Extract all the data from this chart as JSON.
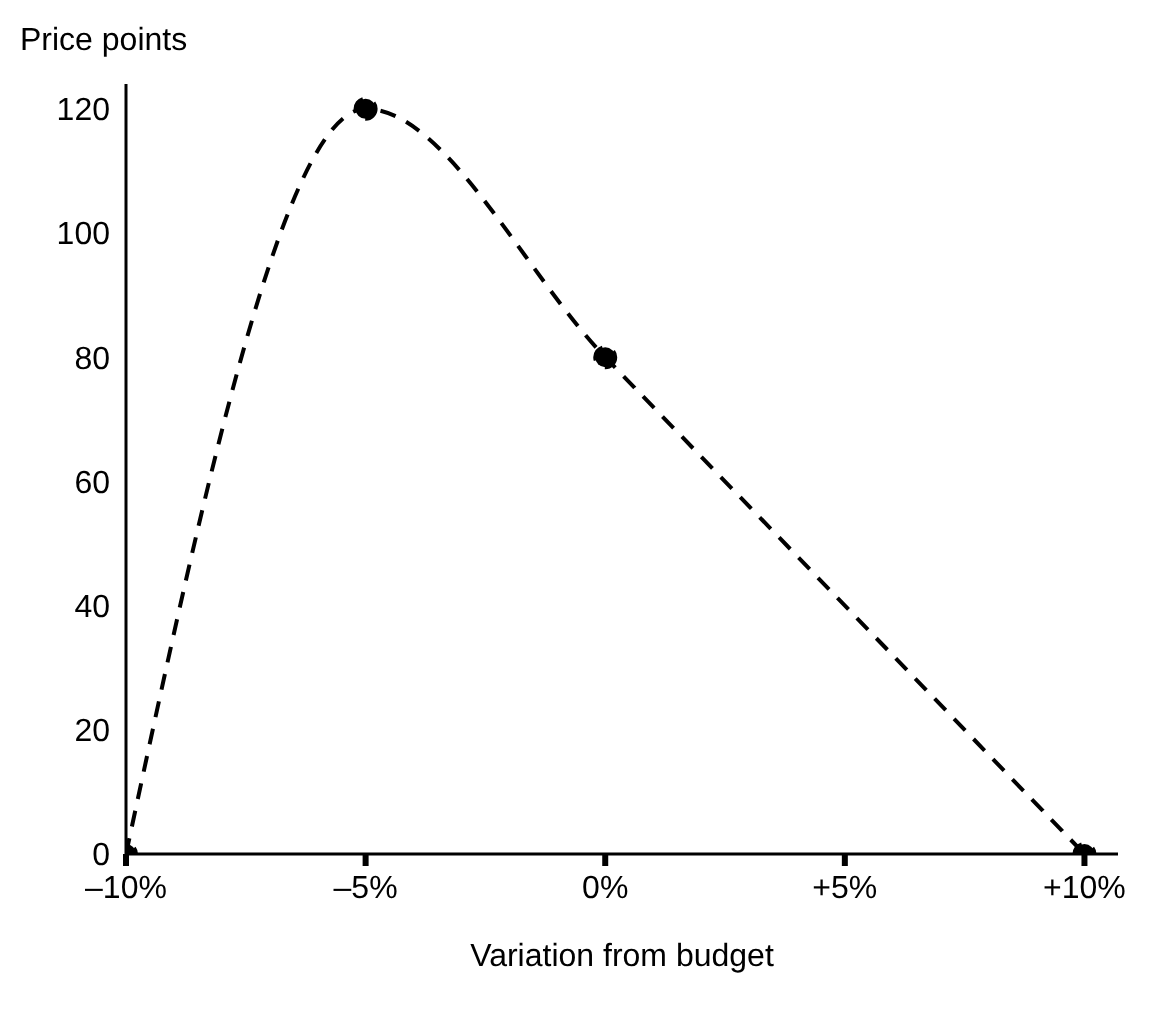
{
  "chart_data": {
    "type": "line",
    "xlabel": "Variation from budget",
    "ylabel": "Price points",
    "x": [
      -10,
      -5,
      0,
      10
    ],
    "series": [
      {
        "color": "#000000",
        "values": [
          0,
          120,
          80,
          0
        ]
      }
    ],
    "xlim": [
      -10,
      10.7
    ],
    "ylim": [
      0,
      124
    ],
    "xticks": [
      {
        "value": -10,
        "label": "–10%"
      },
      {
        "value": -5,
        "label": "–5%"
      },
      {
        "value": 0,
        "label": "0%"
      },
      {
        "value": 5,
        "label": "+5%"
      },
      {
        "value": 10,
        "label": "+10%"
      }
    ],
    "yticks": [
      0,
      20,
      40,
      60,
      80,
      100,
      120
    ],
    "grid": false,
    "legend": false,
    "marker": "circle",
    "line_style": "dashed"
  }
}
